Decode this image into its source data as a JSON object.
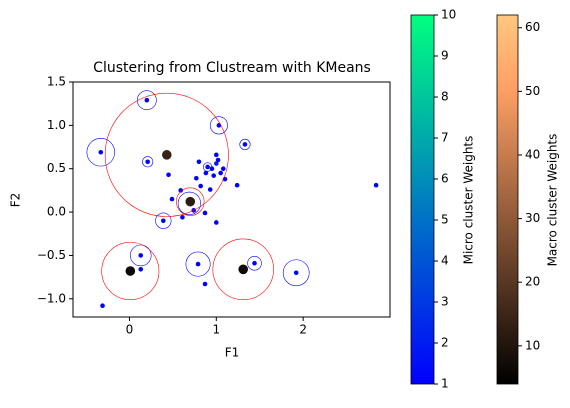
{
  "chart_data": {
    "type": "scatter",
    "title": "Clustering from Clustream with KMeans",
    "x_label": "F1",
    "y_label": "F2",
    "xlim": [
      -0.65,
      3.0
    ],
    "ylim": [
      -1.21,
      1.5
    ],
    "xticks": [
      0,
      1,
      2
    ],
    "yticks": [
      {
        "value": -1.0,
        "label": "−1.0"
      },
      {
        "value": -0.5,
        "label": "−0.5"
      },
      {
        "value": 0.0,
        "label": "0.0"
      },
      {
        "value": 0.5,
        "label": "0.5"
      },
      {
        "value": 1.0,
        "label": "1.0"
      },
      {
        "value": 1.5,
        "label": "1.5"
      }
    ],
    "micro_clusters": {
      "x": [
        0.2,
        -0.33,
        1.03,
        1.33,
        0.21,
        0.45,
        2.84,
        1.24,
        0.8,
        1.0,
        0.95,
        1.05,
        0.9,
        1.02,
        0.97,
        1.08,
        1.0,
        0.88,
        1.1,
        0.77,
        0.82,
        0.93,
        0.59,
        0.49,
        0.39,
        0.61,
        0.87,
        1.0,
        0.69,
        0.74,
        0.13,
        0.13,
        0.79,
        1.44,
        1.92,
        0.87,
        -0.31
      ],
      "y": [
        1.29,
        0.69,
        1.0,
        0.78,
        0.58,
        0.43,
        0.31,
        0.31,
        0.58,
        0.56,
        0.5,
        0.45,
        0.52,
        0.6,
        0.42,
        0.5,
        0.66,
        0.45,
        0.38,
        0.39,
        0.3,
        0.26,
        0.25,
        0.15,
        -0.1,
        -0.06,
        -0.01,
        -0.12,
        0.1,
        0.02,
        -0.5,
        -0.66,
        -0.6,
        -0.59,
        -0.7,
        -0.83,
        -1.08
      ],
      "radius": [
        0.11,
        0.16,
        0.1,
        0.06,
        0.06,
        0.0,
        0.0,
        0.0,
        0.0,
        0.0,
        0.0,
        0.0,
        0.05,
        0.0,
        0.0,
        0.0,
        0.0,
        0.0,
        0.0,
        0.0,
        0.0,
        0.0,
        0.0,
        0.0,
        0.09,
        0.0,
        0.0,
        0.0,
        0.13,
        0.0,
        0.12,
        0.0,
        0.14,
        0.08,
        0.15,
        0.0,
        0.0
      ],
      "weight": [
        1,
        1,
        1,
        1,
        1,
        1,
        1,
        1,
        1,
        2,
        1,
        1,
        1,
        1,
        1,
        1,
        1,
        1,
        1,
        1,
        1,
        1,
        1,
        1,
        1,
        1,
        1,
        1,
        1,
        1,
        1,
        1,
        1,
        1,
        1,
        1,
        1
      ]
    },
    "macro_clusters": {
      "x": [
        0.43,
        0.7,
        0.01,
        1.31
      ],
      "y": [
        0.66,
        0.12,
        -0.68,
        -0.66
      ],
      "radius": [
        0.71,
        0.16,
        0.33,
        0.35
      ],
      "weight": [
        14,
        12,
        6,
        7
      ]
    },
    "micro_colorbar": {
      "label": "Micro cluster Weights",
      "lim": [
        1,
        10
      ],
      "ticks": [
        1,
        2,
        3,
        4,
        5,
        6,
        7,
        8,
        9,
        10
      ]
    },
    "macro_colorbar": {
      "label": "Macro cluster Weights",
      "lim": [
        4,
        62
      ],
      "ticks": [
        10,
        20,
        30,
        40,
        50,
        60
      ]
    }
  }
}
